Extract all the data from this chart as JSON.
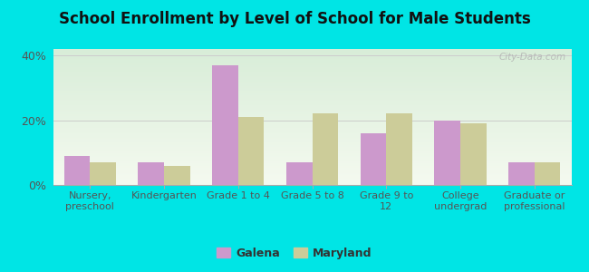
{
  "title": "School Enrollment by Level of School for Male Students",
  "categories": [
    "Nursery,\npreschool",
    "Kindergarten",
    "Grade 1 to 4",
    "Grade 5 to 8",
    "Grade 9 to\n12",
    "College\nundergrad",
    "Graduate or\nprofessional"
  ],
  "galena": [
    9,
    7,
    37,
    7,
    16,
    20,
    7
  ],
  "maryland": [
    7,
    6,
    21,
    22,
    22,
    19,
    7
  ],
  "galena_color": "#cc99cc",
  "maryland_color": "#cccc99",
  "background_outer": "#00e5e5",
  "background_inner_top": "#f5faf0",
  "background_inner_bottom": "#d8edd8",
  "title_color": "#111111",
  "axis_label_color": "#555555",
  "yticks": [
    0,
    20,
    40
  ],
  "ylim": [
    0,
    42
  ],
  "bar_width": 0.35,
  "legend_labels": [
    "Galena",
    "Maryland"
  ],
  "watermark": "City-Data.com"
}
